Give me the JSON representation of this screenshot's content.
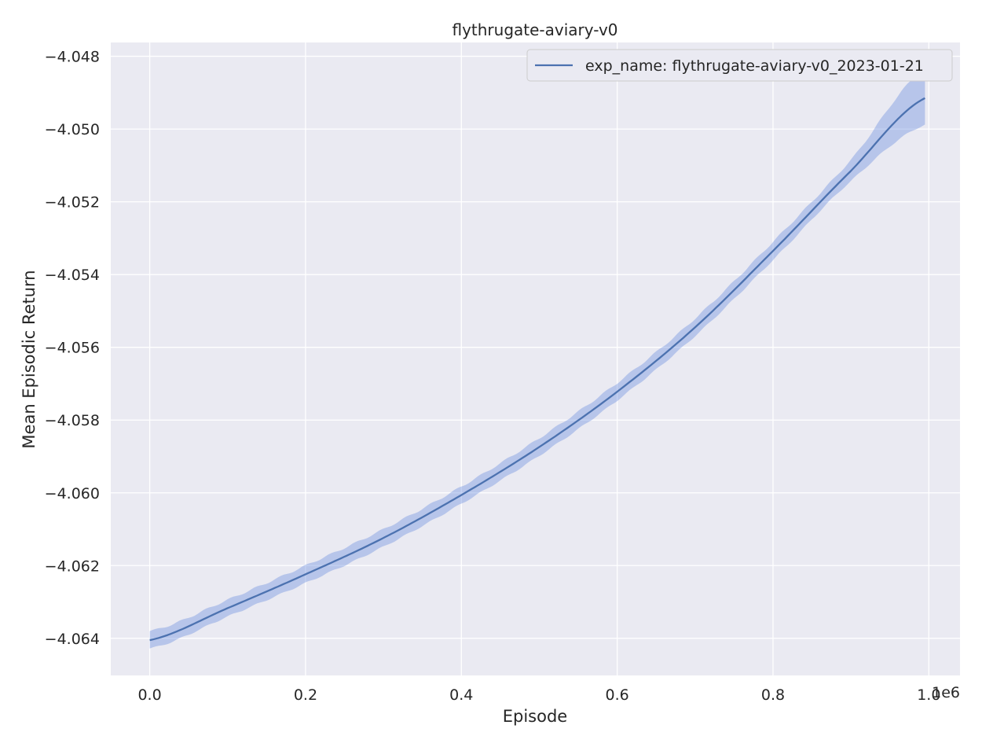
{
  "chart_data": {
    "type": "line",
    "title": "flythrugate-aviary-v0",
    "xlabel": "Episode",
    "ylabel": "Mean Episodic Return",
    "x_offset_label": "1e6",
    "xlim": [
      -0.05,
      1.04
    ],
    "ylim": [
      -4.06502,
      -4.04762
    ],
    "xticks": [
      0.0,
      0.2,
      0.4,
      0.6,
      0.8,
      1.0
    ],
    "xtick_labels": [
      "0.0",
      "0.2",
      "0.4",
      "0.6",
      "0.8",
      "1.0"
    ],
    "yticks": [
      -4.064,
      -4.062,
      -4.06,
      -4.058,
      -4.056,
      -4.054,
      -4.052,
      -4.05,
      -4.048
    ],
    "ytick_labels": [
      "−4.064",
      "−4.062",
      "−4.060",
      "−4.058",
      "−4.056",
      "−4.054",
      "−4.052",
      "−4.050",
      "−4.048"
    ],
    "grid": true,
    "legend_position": "top-right",
    "colors": {
      "line": "#4c72b0",
      "band": "#6b8fde",
      "axes_bg": "#eaeaf2",
      "grid": "#ffffff"
    },
    "series": [
      {
        "name": "exp_name: flythrugate-aviary-v0_2023-01-21",
        "x": [
          0.0,
          0.1,
          0.2,
          0.3,
          0.4,
          0.5,
          0.6,
          0.7,
          0.8,
          0.9,
          0.995
        ],
        "y": [
          -4.06405,
          -4.06317,
          -4.06224,
          -4.06124,
          -4.06006,
          -4.05874,
          -4.05722,
          -4.05545,
          -4.05335,
          -4.05115,
          -4.04915
        ],
        "y_lower": [
          -4.06428,
          -4.0634,
          -4.06248,
          -4.06148,
          -4.0603,
          -4.05898,
          -4.05746,
          -4.05569,
          -4.0536,
          -4.05143,
          -4.04988
        ],
        "y_upper": [
          -4.0638,
          -4.06294,
          -4.062,
          -4.061,
          -4.05983,
          -4.0585,
          -4.05698,
          -4.05521,
          -4.0531,
          -4.05085,
          -4.04835
        ]
      }
    ]
  }
}
